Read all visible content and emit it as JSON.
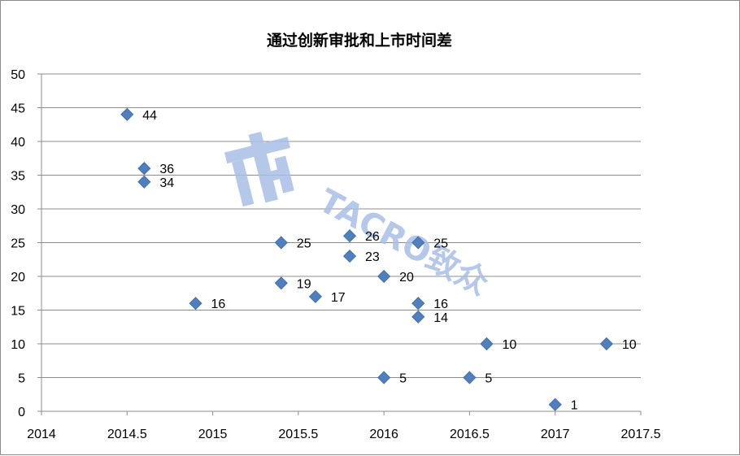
{
  "chart_data": {
    "type": "scatter",
    "title": "通过创新审批和上市时间差",
    "xlabel": "",
    "ylabel": "",
    "xlim": [
      2014,
      2017.5
    ],
    "ylim": [
      0,
      50
    ],
    "x_ticks": [
      "2014",
      "2014.5",
      "2015",
      "2015.5",
      "2016",
      "2016.5",
      "2017",
      "2017.5"
    ],
    "y_ticks": [
      "0",
      "5",
      "10",
      "15",
      "20",
      "25",
      "30",
      "35",
      "40",
      "45",
      "50"
    ],
    "grid": true,
    "legend": "none",
    "marker": "diamond",
    "marker_color": "#4f7fbd",
    "points": [
      {
        "x": 2014.5,
        "y": 44,
        "label": "44"
      },
      {
        "x": 2014.6,
        "y": 36,
        "label": "36"
      },
      {
        "x": 2014.6,
        "y": 34,
        "label": "34"
      },
      {
        "x": 2014.9,
        "y": 16,
        "label": "16"
      },
      {
        "x": 2015.4,
        "y": 25,
        "label": "25"
      },
      {
        "x": 2015.4,
        "y": 19,
        "label": "19"
      },
      {
        "x": 2015.6,
        "y": 17,
        "label": "17"
      },
      {
        "x": 2015.8,
        "y": 26,
        "label": "26"
      },
      {
        "x": 2015.8,
        "y": 23,
        "label": "23"
      },
      {
        "x": 2016.0,
        "y": 20,
        "label": "20"
      },
      {
        "x": 2016.0,
        "y": 5,
        "label": "5"
      },
      {
        "x": 2016.2,
        "y": 25,
        "label": "25"
      },
      {
        "x": 2016.2,
        "y": 16,
        "label": "16"
      },
      {
        "x": 2016.2,
        "y": 14,
        "label": "14"
      },
      {
        "x": 2016.5,
        "y": 5,
        "label": "5"
      },
      {
        "x": 2016.6,
        "y": 10,
        "label": "10"
      },
      {
        "x": 2017.0,
        "y": 1,
        "label": "1"
      },
      {
        "x": 2017.3,
        "y": 10,
        "label": "10"
      }
    ]
  },
  "watermark": {
    "text": "TACRO致众",
    "color": "#a9bfe6",
    "logo_icon": "tacro-logo-icon"
  }
}
